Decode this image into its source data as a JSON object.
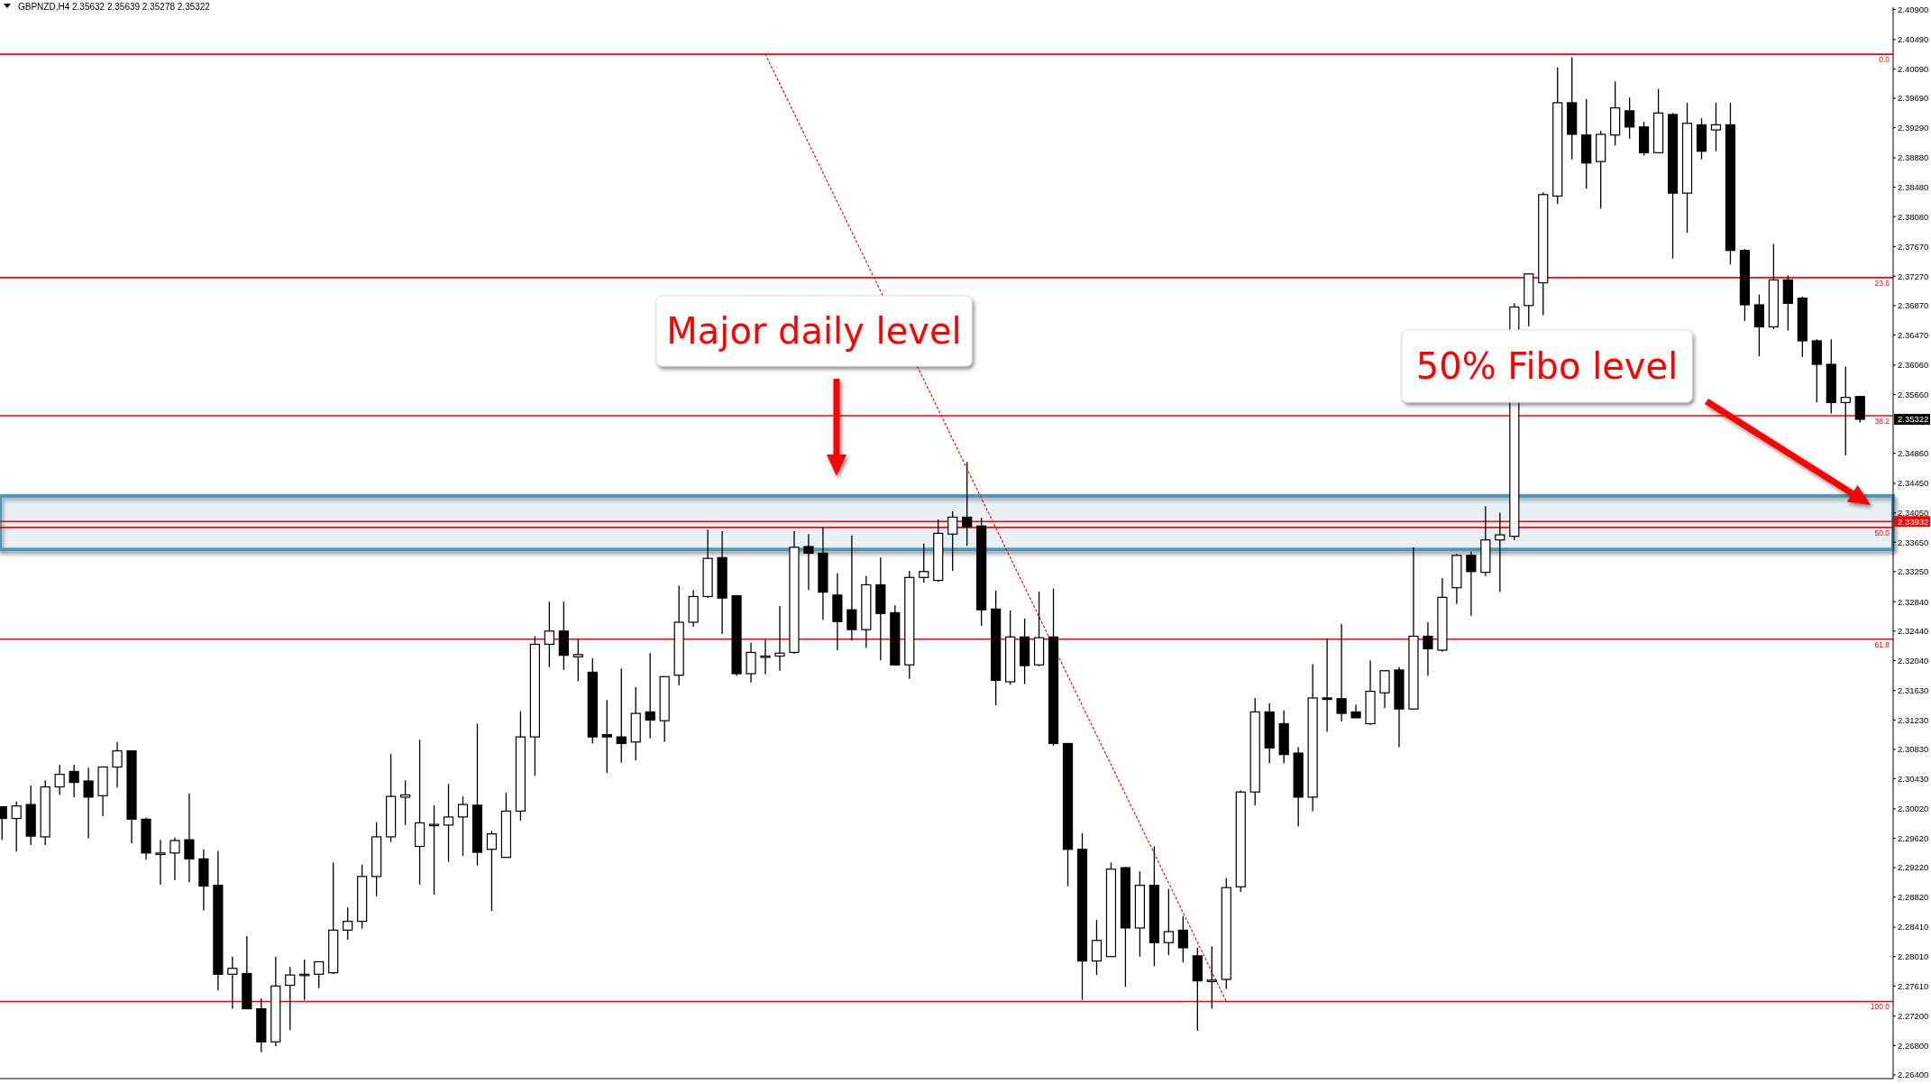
{
  "chart_data": {
    "type": "candlestick",
    "title": "GBPNZD,H4  2.35632 2.35639 2.35278 2.35322",
    "categories": [
      null,
      null,
      null,
      null,
      null,
      null,
      null,
      null,
      null,
      null,
      null,
      null,
      null,
      null,
      null,
      null,
      null,
      null,
      null,
      null,
      null,
      null,
      null,
      null,
      null,
      null,
      null,
      null,
      null,
      null,
      null,
      null,
      null,
      null,
      null,
      null,
      null,
      null,
      null,
      null,
      null,
      null,
      null,
      null,
      null,
      null,
      null,
      null,
      null,
      null,
      null,
      null,
      null,
      null,
      null,
      null,
      null,
      null,
      null,
      null,
      null,
      null,
      null,
      null,
      null,
      null,
      null,
      null,
      null,
      null,
      null,
      null,
      null,
      null,
      null,
      null,
      null,
      null,
      null,
      null,
      null,
      null,
      null,
      null,
      null,
      null,
      null,
      null,
      null,
      null,
      null,
      null,
      null,
      null,
      null,
      null,
      null,
      null,
      null,
      null,
      null,
      null,
      null,
      null,
      null,
      null,
      null,
      null,
      null,
      null,
      null,
      null,
      null,
      null,
      null,
      null,
      null,
      null,
      null,
      null,
      null,
      null,
      null,
      null,
      null,
      null,
      null,
      null,
      null,
      null
    ],
    "ohlc": [
      [
        2.3005,
        2.3005,
        2.296,
        2.2989
      ],
      [
        2.2989,
        2.3012,
        2.2944,
        2.3006
      ],
      [
        2.3008,
        2.3034,
        2.2953,
        2.2965
      ],
      [
        2.2964,
        2.3041,
        2.2953,
        2.3032
      ],
      [
        2.3032,
        2.3062,
        2.3021,
        2.3049
      ],
      [
        2.3053,
        2.3062,
        2.3018,
        2.3038
      ],
      [
        2.304,
        2.3058,
        2.2962,
        2.3018
      ],
      [
        2.302,
        2.306,
        2.2992,
        2.3059
      ],
      [
        2.3059,
        2.3093,
        2.3031,
        2.3081
      ],
      [
        2.3081,
        2.3081,
        2.2955,
        2.2988
      ],
      [
        2.2988,
        2.299,
        2.2933,
        2.2942
      ],
      [
        2.294,
        2.296,
        2.2899,
        2.2942
      ],
      [
        2.2942,
        2.2963,
        2.2905,
        2.2959
      ],
      [
        2.296,
        2.3023,
        2.2902,
        2.2934
      ],
      [
        2.2934,
        2.2947,
        2.2864,
        2.2897
      ],
      [
        2.2898,
        2.2945,
        2.2755,
        2.2777
      ],
      [
        2.2777,
        2.2801,
        2.273,
        2.2785
      ],
      [
        2.2778,
        2.2829,
        2.273,
        2.273
      ],
      [
        2.273,
        2.2744,
        2.2671,
        2.2685
      ],
      [
        2.2685,
        2.2801,
        2.2679,
        2.2761
      ],
      [
        2.2762,
        2.2787,
        2.2701,
        2.2776
      ],
      [
        2.2777,
        2.2797,
        2.2742,
        2.2777
      ],
      [
        2.2777,
        2.2794,
        2.2758,
        2.2794
      ],
      [
        2.2779,
        2.2929,
        2.2777,
        2.2837
      ],
      [
        2.2837,
        2.2868,
        2.2824,
        2.2849
      ],
      [
        2.2849,
        2.2926,
        2.2839,
        2.291
      ],
      [
        2.291,
        2.2984,
        2.2883,
        2.2964
      ],
      [
        2.2964,
        2.3077,
        2.2957,
        2.3019
      ],
      [
        2.3018,
        2.3041,
        2.298,
        2.3021
      ],
      [
        2.2951,
        2.3096,
        2.2899,
        2.2983
      ],
      [
        2.2981,
        2.3007,
        2.2885,
        2.2981
      ],
      [
        2.298,
        2.3036,
        2.293,
        2.2991
      ],
      [
        2.2991,
        2.3019,
        2.2938,
        2.3008
      ],
      [
        2.3007,
        2.3118,
        2.2925,
        2.2943
      ],
      [
        2.2947,
        2.2972,
        2.2863,
        2.2968
      ],
      [
        2.2936,
        2.3024,
        2.2936,
        2.2999
      ],
      [
        2.2999,
        2.3135,
        2.2986,
        2.31
      ],
      [
        2.31,
        2.3237,
        2.3047,
        2.3226
      ],
      [
        2.3226,
        2.3284,
        2.3195,
        2.3244
      ],
      [
        2.3244,
        2.3284,
        2.3191,
        2.3211
      ],
      [
        2.3209,
        2.3233,
        2.3176,
        2.3212
      ],
      [
        2.3188,
        2.3207,
        2.3091,
        2.31
      ],
      [
        2.3103,
        2.315,
        2.3051,
        2.31
      ],
      [
        2.31,
        2.3193,
        2.3065,
        2.3091
      ],
      [
        2.3093,
        2.3168,
        2.3068,
        2.3132
      ],
      [
        2.3134,
        2.3214,
        2.3098,
        2.3123
      ],
      [
        2.3122,
        2.3182,
        2.3093,
        2.3182
      ],
      [
        2.3184,
        2.3306,
        2.317,
        2.3256
      ],
      [
        2.3256,
        2.33,
        2.325,
        2.3291
      ],
      [
        2.3291,
        2.3382,
        2.3289,
        2.3343
      ],
      [
        2.3344,
        2.338,
        2.324,
        2.3289
      ],
      [
        2.3292,
        2.3293,
        2.3183,
        2.3186
      ],
      [
        2.3186,
        2.3228,
        2.3174,
        2.3215
      ],
      [
        2.321,
        2.3232,
        2.3185,
        2.321
      ],
      [
        2.321,
        2.3278,
        2.319,
        2.3214
      ],
      [
        2.3215,
        2.338,
        2.3213,
        2.3358
      ],
      [
        2.3359,
        2.3376,
        2.33,
        2.335
      ],
      [
        2.335,
        2.3385,
        2.3259,
        2.3297
      ],
      [
        2.3293,
        2.3323,
        2.3218,
        2.3257
      ],
      [
        2.3273,
        2.3374,
        2.3231,
        2.3246
      ],
      [
        2.3246,
        2.3319,
        2.3221,
        2.3307
      ],
      [
        2.3307,
        2.3344,
        2.3204,
        2.3268
      ],
      [
        2.3269,
        2.3279,
        2.3197,
        2.3198
      ],
      [
        2.3198,
        2.3326,
        2.3179,
        2.3317
      ],
      [
        2.3317,
        2.3363,
        2.331,
        2.3325
      ],
      [
        2.3313,
        2.3396,
        2.3311,
        2.3377
      ],
      [
        2.3376,
        2.3407,
        2.3326,
        2.3399
      ],
      [
        2.3399,
        2.3474,
        2.336,
        2.3386
      ],
      [
        2.3387,
        2.3398,
        2.3251,
        2.3273
      ],
      [
        2.3274,
        2.3299,
        2.3143,
        2.3177
      ],
      [
        2.3175,
        2.3272,
        2.3171,
        2.3236
      ],
      [
        2.3236,
        2.3261,
        2.3172,
        2.3197
      ],
      [
        2.3198,
        2.3298,
        2.3196,
        2.3235
      ],
      [
        2.3236,
        2.3302,
        2.3088,
        2.3091
      ],
      [
        2.3091,
        2.3091,
        2.2897,
        2.2947
      ],
      [
        2.2947,
        2.2969,
        2.2742,
        2.2795
      ],
      [
        2.2795,
        2.2851,
        2.2776,
        2.2823
      ],
      [
        2.2801,
        2.2929,
        2.2801,
        2.292
      ],
      [
        2.2922,
        2.2923,
        2.276,
        2.284
      ],
      [
        2.284,
        2.2917,
        2.2801,
        2.2898
      ],
      [
        2.2898,
        2.2951,
        2.2788,
        2.282
      ],
      [
        2.282,
        2.2893,
        2.2803,
        2.2835
      ],
      [
        2.2837,
        2.2856,
        2.2793,
        2.2813
      ],
      [
        2.2802,
        2.2813,
        2.27,
        2.2768
      ],
      [
        2.2767,
        2.2815,
        2.273,
        2.2769
      ],
      [
        2.277,
        2.2908,
        2.2757,
        2.2895
      ],
      [
        2.2896,
        2.3027,
        2.2889,
        2.3025
      ],
      [
        2.3025,
        2.3153,
        2.3007,
        2.3134
      ],
      [
        2.3134,
        2.3146,
        2.3064,
        2.3085
      ],
      [
        2.3118,
        2.3136,
        2.3064,
        2.3076
      ],
      [
        2.3078,
        2.3086,
        2.2978,
        2.3018
      ],
      [
        2.3018,
        2.3199,
        2.2999,
        2.3153
      ],
      [
        2.3153,
        2.3234,
        2.3107,
        2.3151
      ],
      [
        2.3152,
        2.3254,
        2.3121,
        2.3132
      ],
      [
        2.3134,
        2.3144,
        2.3126,
        2.3126
      ],
      [
        2.3118,
        2.3204,
        2.3116,
        2.3162
      ],
      [
        2.316,
        2.3191,
        2.3139,
        2.319
      ],
      [
        2.3191,
        2.3195,
        2.3086,
        2.3138
      ],
      [
        2.3138,
        2.3358,
        2.3137,
        2.3237
      ],
      [
        2.3237,
        2.3256,
        2.3183,
        2.322
      ],
      [
        2.3218,
        2.3316,
        2.3216,
        2.329
      ],
      [
        2.3303,
        2.3349,
        2.3281,
        2.3347
      ],
      [
        2.3347,
        2.3352,
        2.3265,
        2.3325
      ],
      [
        2.3324,
        2.3414,
        2.3319,
        2.3368
      ],
      [
        2.3368,
        2.3405,
        2.3297,
        2.3375
      ],
      [
        2.3373,
        2.369,
        2.3368,
        2.3685
      ],
      [
        2.3687,
        2.3731,
        2.3659,
        2.373
      ],
      [
        2.3718,
        2.3841,
        2.3674,
        2.3838
      ],
      [
        2.3836,
        2.4011,
        2.3825,
        2.3963
      ],
      [
        2.3963,
        2.4025,
        2.3886,
        2.392
      ],
      [
        2.3919,
        2.3968,
        2.3846,
        2.3881
      ],
      [
        2.3883,
        2.3925,
        2.3819,
        2.392
      ],
      [
        2.3919,
        2.3992,
        2.3905,
        2.3956
      ],
      [
        2.3952,
        2.397,
        2.3914,
        2.393
      ],
      [
        2.393,
        2.3937,
        2.3891,
        2.3895
      ],
      [
        2.3895,
        2.3982,
        2.3895,
        2.3949
      ],
      [
        2.3947,
        2.3949,
        2.3751,
        2.384
      ],
      [
        2.384,
        2.3963,
        2.3786,
        2.3935
      ],
      [
        2.3933,
        2.3942,
        2.3886,
        2.3897
      ],
      [
        2.3926,
        2.3963,
        2.3897,
        2.3933
      ],
      [
        2.3933,
        2.3963,
        2.3743,
        2.3762
      ],
      [
        2.3762,
        2.3764,
        2.3666,
        2.3688
      ],
      [
        2.3688,
        2.3702,
        2.3618,
        2.3658
      ],
      [
        2.3658,
        2.3771,
        2.3655,
        2.3722
      ],
      [
        2.3722,
        2.3728,
        2.3653,
        2.369
      ],
      [
        2.3697,
        2.3699,
        2.3617,
        2.3639
      ],
      [
        2.3639,
        2.3641,
        2.3555,
        2.3607
      ],
      [
        2.3607,
        2.3641,
        2.354,
        2.3555
      ],
      [
        2.3555,
        2.3604,
        2.3483,
        2.3562
      ],
      [
        2.35632,
        2.35639,
        2.35278,
        2.35322
      ]
    ],
    "series": [
      {
        "type": "line",
        "color": "#ff0000",
        "line_style": "dotted",
        "values": [
          null,
          null,
          null,
          null,
          null,
          null,
          null,
          null,
          null,
          null,
          null,
          null,
          null,
          null,
          null,
          null,
          null,
          null,
          null,
          null,
          null,
          null,
          null,
          null,
          null,
          null,
          null,
          null,
          null,
          null,
          null,
          null,
          null,
          null,
          null,
          null,
          null,
          null,
          null,
          null,
          null,
          null,
          null,
          null,
          null,
          null,
          null,
          null,
          null,
          null,
          null,
          null,
          null,
          2.4029,
          null,
          null,
          null,
          null,
          null,
          null,
          null,
          null,
          null,
          null,
          null,
          null,
          null,
          null,
          null,
          null,
          null,
          null,
          null,
          null,
          null,
          null,
          null,
          null,
          null,
          null,
          null,
          null,
          null,
          null,
          null,
          2.274,
          null,
          null,
          null,
          null,
          null,
          null,
          null,
          null,
          null,
          null,
          null,
          null,
          null,
          null,
          null,
          null,
          null,
          null,
          null,
          null,
          null,
          null,
          null,
          null,
          null,
          null,
          null,
          null,
          null,
          null,
          null,
          null,
          null,
          null,
          null,
          null,
          null,
          null,
          null,
          null,
          null,
          null,
          null,
          null
        ]
      }
    ],
    "ylim": [
      2.2635,
      2.4093
    ],
    "yticks": [
      {
        "value": 2.264,
        "label": "2.26400"
      },
      {
        "value": 2.268,
        "label": "2.26800"
      },
      {
        "value": 2.272,
        "label": "2.27200"
      },
      {
        "value": 2.2761,
        "label": "2.27610"
      },
      {
        "value": 2.2801,
        "label": "2.28010"
      },
      {
        "value": 2.2841,
        "label": "2.28410"
      },
      {
        "value": 2.2882,
        "label": "2.28820"
      },
      {
        "value": 2.2922,
        "label": "2.29220"
      },
      {
        "value": 2.2962,
        "label": "2.29620"
      },
      {
        "value": 2.3002,
        "label": "2.30020"
      },
      {
        "value": 2.3043,
        "label": "2.30430"
      },
      {
        "value": 2.3083,
        "label": "2.30830"
      },
      {
        "value": 2.3123,
        "label": "2.31230"
      },
      {
        "value": 2.3163,
        "label": "2.31630"
      },
      {
        "value": 2.3204,
        "label": "2.32040"
      },
      {
        "value": 2.3244,
        "label": "2.32440"
      },
      {
        "value": 2.3284,
        "label": "2.32840"
      },
      {
        "value": 2.3325,
        "label": "2.33250"
      },
      {
        "value": 2.3365,
        "label": "2.33650"
      },
      {
        "value": 2.3405,
        "label": "2.34050"
      },
      {
        "value": 2.3445,
        "label": "2.34450"
      },
      {
        "value": 2.3486,
        "label": "2.34860"
      },
      {
        "value": 2.3566,
        "label": "2.35660"
      },
      {
        "value": 2.3606,
        "label": "2.36060"
      },
      {
        "value": 2.3647,
        "label": "2.36470"
      },
      {
        "value": 2.3687,
        "label": "2.36870"
      },
      {
        "value": 2.3727,
        "label": "2.37270"
      },
      {
        "value": 2.3767,
        "label": "2.37670"
      },
      {
        "value": 2.3808,
        "label": "2.38080"
      },
      {
        "value": 2.3848,
        "label": "2.38480"
      },
      {
        "value": 2.3888,
        "label": "2.38880"
      },
      {
        "value": 2.3929,
        "label": "2.39290"
      },
      {
        "value": 2.3969,
        "label": "2.39690"
      },
      {
        "value": 2.4009,
        "label": "2.40090"
      },
      {
        "value": 2.4049,
        "label": "2.40490"
      },
      {
        "value": 2.409,
        "label": "2.40900"
      }
    ],
    "tick_labels": "y",
    "grid": false,
    "ref_lines": [
      {
        "axis": "y",
        "value": 2.4029,
        "color": "#ff0000"
      },
      {
        "axis": "y",
        "value": 2.3725,
        "color": "#ff0000"
      },
      {
        "axis": "y",
        "value": 2.3537,
        "color": "#ff0000"
      },
      {
        "axis": "y",
        "value": 2.3385,
        "color": "#ff0000"
      },
      {
        "axis": "y",
        "value": 2.3233,
        "color": "#ff0000"
      },
      {
        "axis": "y",
        "value": 2.274,
        "color": "#ff0000"
      },
      {
        "axis": "y",
        "value": 2.33932,
        "label": "2.33932",
        "color": "#ff0000"
      }
    ],
    "bands": [
      {
        "axis": "y",
        "from": 2.3355,
        "to": 2.3428,
        "color": "#4f97b3"
      }
    ],
    "annotations": [
      "Major daily level",
      "50% Fibo level",
      "2.35322",
      {
        "text": "0.0",
        "y": 2.4029
      },
      {
        "text": "23.6",
        "y": 2.3725
      },
      {
        "text": "38.2",
        "y": 2.3537
      },
      {
        "text": "50.0",
        "y": 2.3385
      },
      {
        "text": "61.8",
        "y": 2.3233
      },
      {
        "text": "100.0",
        "y": 2.274
      }
    ]
  }
}
